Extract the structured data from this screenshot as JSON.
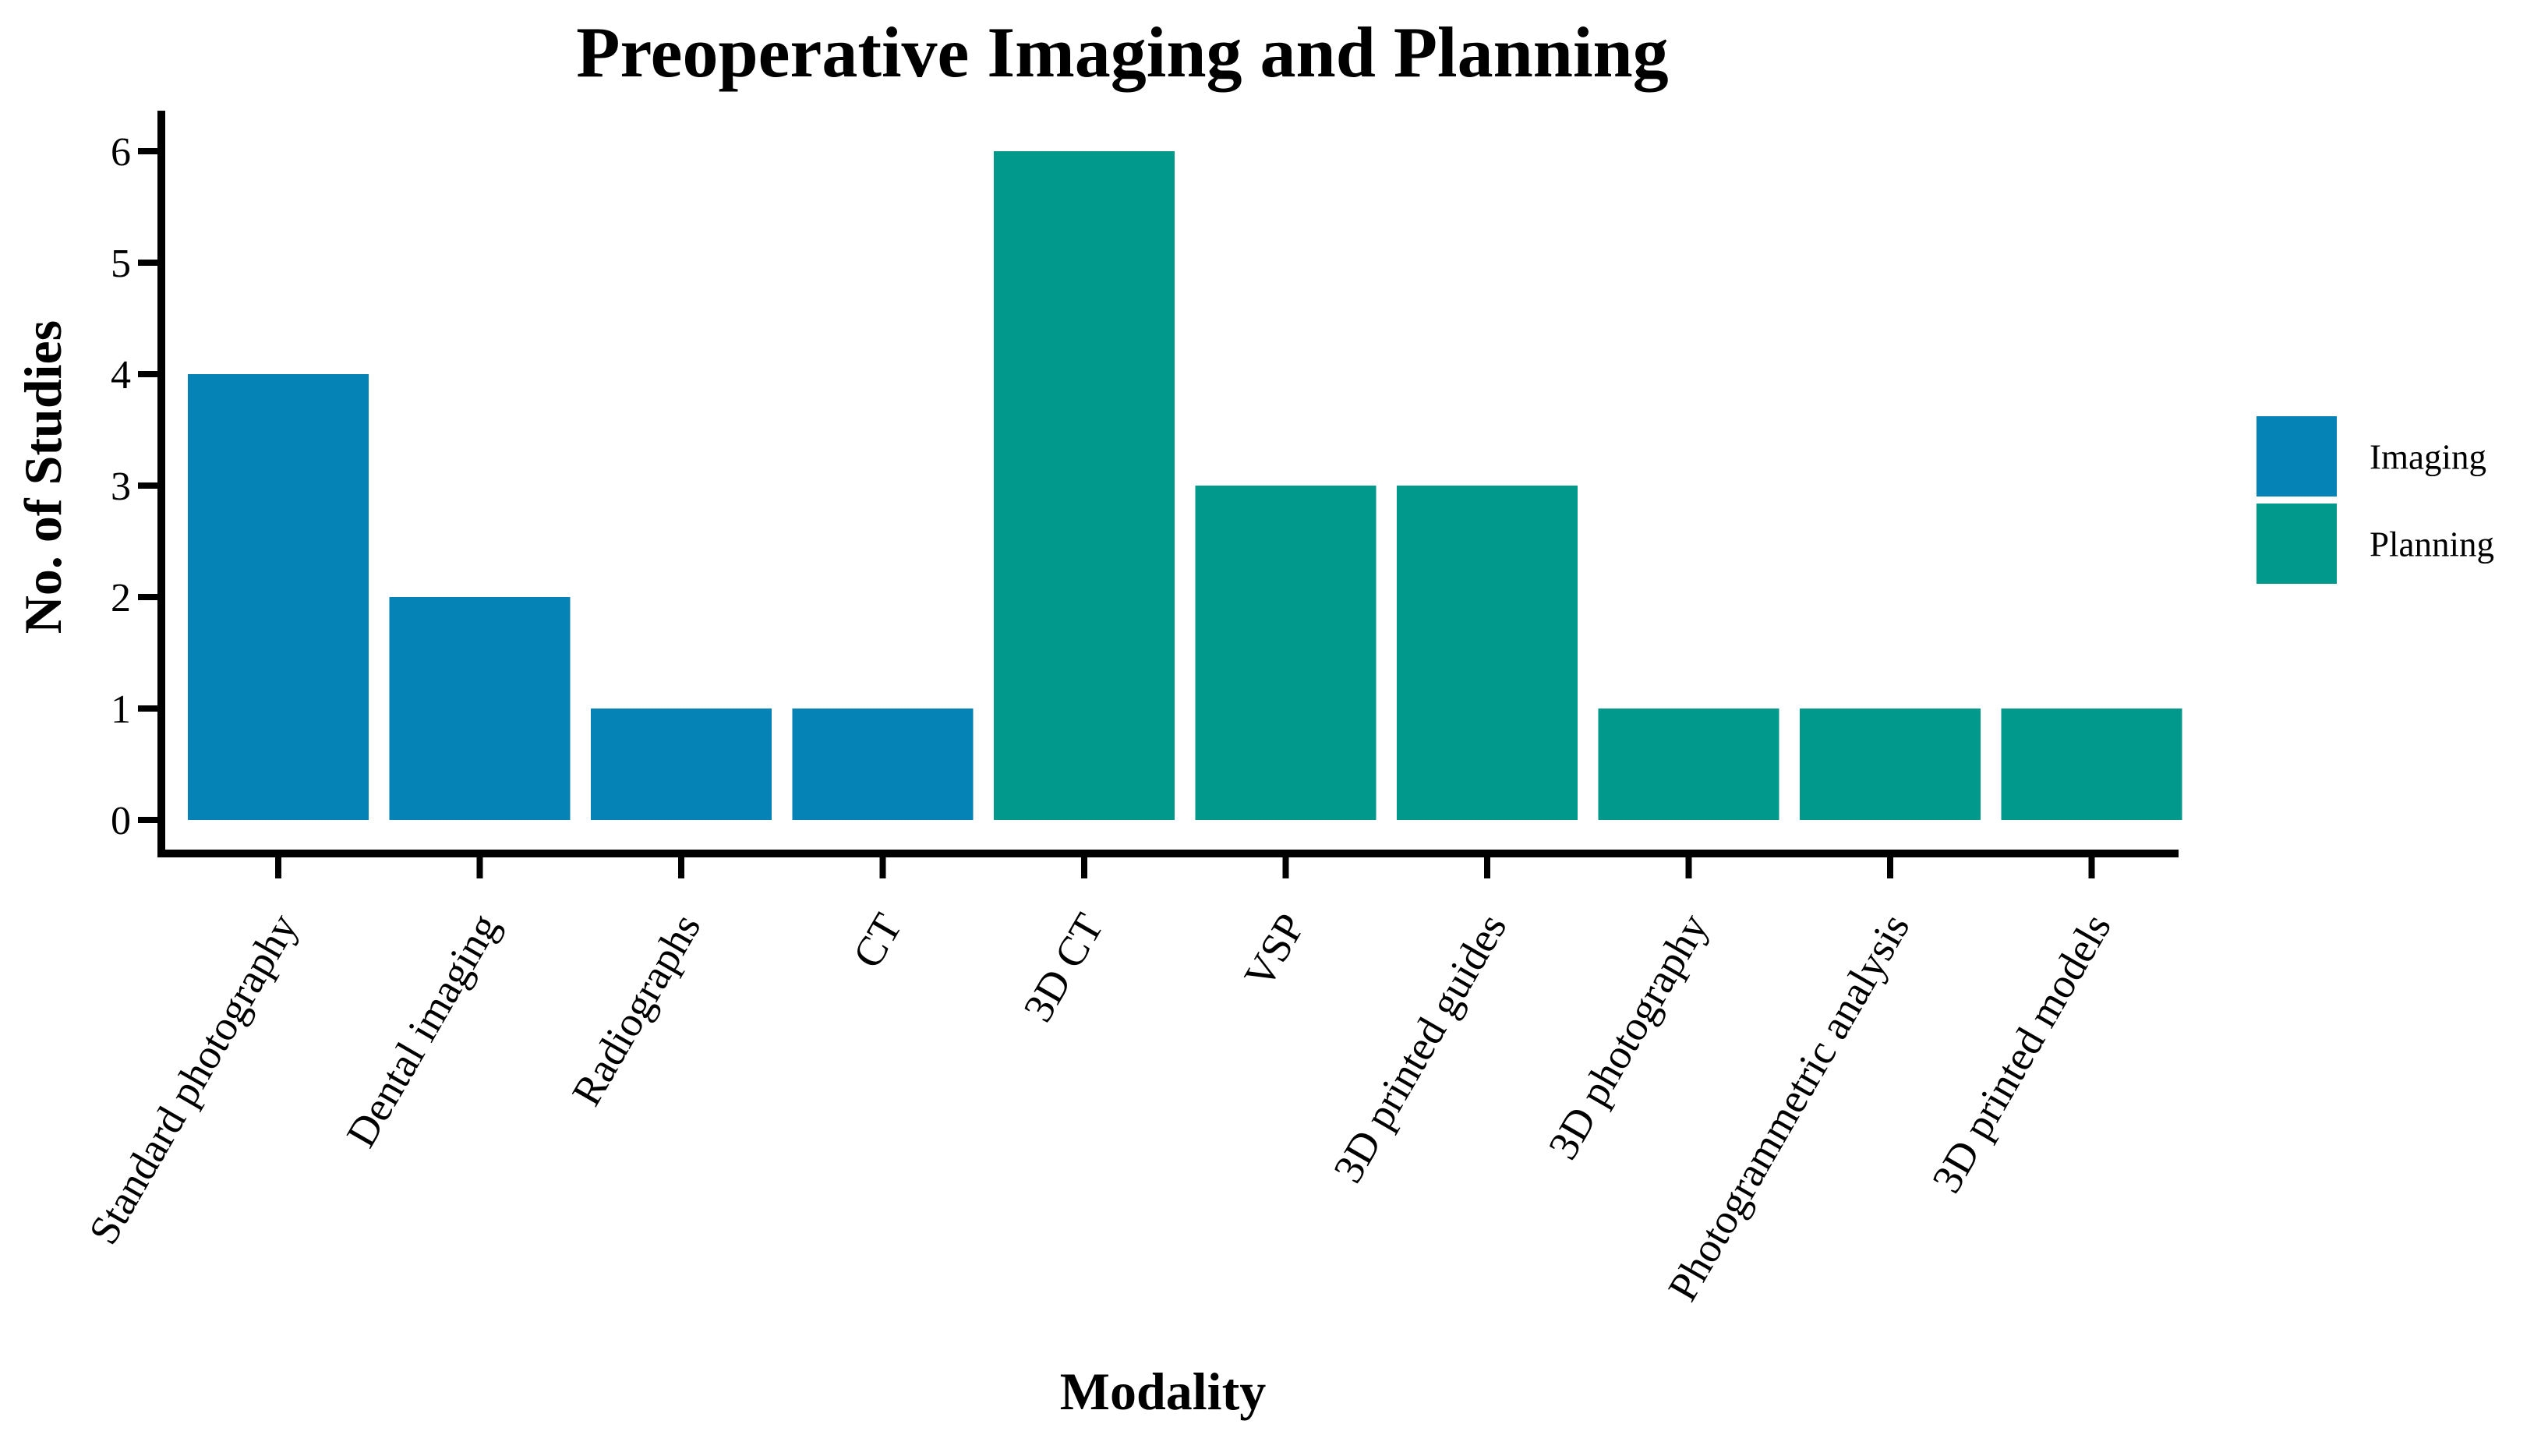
{
  "page": {
    "background_color": "#ffffff"
  },
  "chart_data": {
    "type": "bar",
    "title": "Preoperative Imaging and Planning",
    "xlabel": "Modality",
    "ylabel": "No. of Studies",
    "categories": [
      "Standard photography",
      "Dental imaging",
      "Radiographs",
      "CT",
      "3D CT",
      "VSP",
      "3D printed guides",
      "3D photography",
      "Photogrammetric analysis",
      "3D printed models"
    ],
    "values": [
      4,
      2,
      1,
      1,
      6,
      3,
      3,
      1,
      1,
      1
    ],
    "groups": [
      "Imaging",
      "Imaging",
      "Imaging",
      "Imaging",
      "Planning",
      "Planning",
      "Planning",
      "Planning",
      "Planning",
      "Planning"
    ],
    "legend": [
      {
        "label": "Imaging",
        "color": "#0582B6"
      },
      {
        "label": "Planning",
        "color": "#00998B"
      }
    ],
    "legend_position": "right",
    "yticks": [
      0,
      1,
      2,
      3,
      4,
      5,
      6
    ],
    "ylim": [
      0,
      6
    ],
    "grid": false,
    "x_tick_angle_deg": -60,
    "axis_color": "#000000",
    "text_color": "#000000"
  }
}
